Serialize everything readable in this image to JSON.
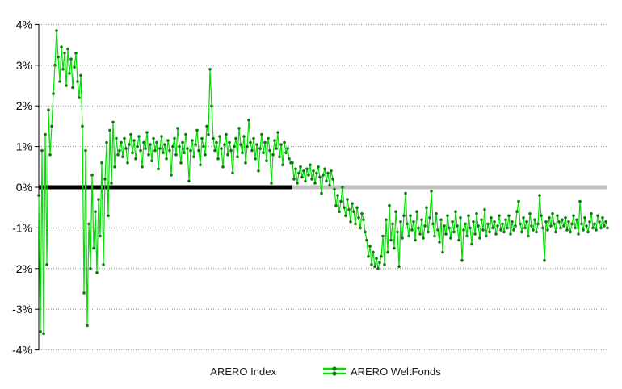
{
  "chart_data": {
    "type": "line",
    "title": "",
    "xlabel": "",
    "ylabel": "",
    "x_axis_labels_visible": false,
    "grid": "horizontal-dotted",
    "legend_position": "bottom-center",
    "y_axis": {
      "ticks": [
        "4%",
        "3%",
        "2%",
        "1%",
        "0%",
        "-1%",
        "-2%",
        "-3%",
        "-4%"
      ],
      "tick_values": [
        4,
        3,
        2,
        1,
        0,
        -1,
        -2,
        -3,
        -4
      ],
      "ylim": [
        -4,
        4
      ]
    },
    "colors": {
      "index_black": "#000000",
      "index_silver": "#c0c0c0",
      "fonds_line": "#00df00",
      "fonds_marker": "#0e7a0e",
      "gridline": "#909090",
      "axis": "#000000",
      "label_text": "#000000"
    },
    "series": [
      {
        "name": "ARERO Index",
        "type": "flat-line",
        "value_percent": 0,
        "black_until_fraction": 0.446
      },
      {
        "name": "ARERO WeltFonds",
        "type": "line-with-markers",
        "unit": "%",
        "values": [
          -0.2,
          -3.55,
          0.9,
          -3.6,
          1.3,
          -1.9,
          1.9,
          0.8,
          1.5,
          2.3,
          3.0,
          3.85,
          3.2,
          2.6,
          3.45,
          2.9,
          3.3,
          2.5,
          3.4,
          2.8,
          3.15,
          2.45,
          2.95,
          3.3,
          2.6,
          2.2,
          2.75,
          1.5,
          -2.6,
          0.9,
          -3.4,
          -0.9,
          -2.0,
          0.3,
          -1.5,
          -0.6,
          -2.1,
          -0.3,
          -1.2,
          0.6,
          -1.9,
          0.2,
          1.1,
          -0.7,
          1.4,
          0.1,
          1.6,
          0.5,
          1.2,
          0.8,
          0.9,
          1.1,
          0.75,
          1.2,
          0.95,
          0.6,
          1.05,
          1.3,
          0.85,
          1.15,
          0.7,
          1.0,
          1.25,
          0.9,
          0.5,
          1.1,
          0.95,
          1.35,
          0.8,
          1.05,
          0.65,
          1.2,
          0.9,
          1.1,
          0.45,
          0.95,
          1.25,
          0.85,
          1.05,
          0.7,
          1.15,
          0.9,
          0.3,
          1.0,
          1.2,
          0.8,
          1.45,
          1.0,
          0.6,
          1.1,
          0.85,
          1.3,
          0.95,
          0.15,
          0.9,
          1.15,
          0.75,
          1.05,
          1.4,
          0.9,
          0.55,
          1.2,
          1.0,
          0.8,
          1.5,
          1.3,
          2.9,
          2.0,
          1.2,
          0.9,
          1.1,
          0.7,
          1.25,
          0.95,
          0.5,
          1.05,
          1.3,
          0.8,
          1.1,
          0.9,
          0.35,
          1.0,
          1.2,
          0.75,
          1.45,
          1.05,
          0.85,
          1.25,
          0.6,
          1.0,
          1.65,
          1.1,
          0.9,
          1.2,
          0.7,
          1.05,
          0.4,
          0.95,
          1.3,
          0.85,
          1.1,
          0.65,
          1.2,
          0.9,
          0.1,
          0.8,
          1.15,
          0.95,
          1.35,
          0.75,
          1.05,
          0.55,
          1.1,
          0.85,
          0.95,
          0.7,
          0.6,
          0.6,
          0.2,
          0.45,
          0.1,
          0.35,
          0.5,
          0.25,
          0.4,
          0.15,
          0.45,
          0.3,
          0.55,
          0.2,
          0.4,
          0.1,
          0.35,
          0.5,
          0.25,
          -0.15,
          0.3,
          0.45,
          0.15,
          0.35,
          0.05,
          0.4,
          0.2,
          -0.05,
          -0.45,
          -0.2,
          -0.6,
          -0.35,
          0.0,
          -0.5,
          -0.7,
          -0.3,
          -0.55,
          -0.85,
          -0.4,
          -0.6,
          -0.9,
          -0.5,
          -0.75,
          -1.0,
          -0.65,
          -0.8,
          -1.1,
          -1.3,
          -1.7,
          -1.45,
          -1.9,
          -1.6,
          -1.95,
          -1.75,
          -2.0,
          -1.85,
          -1.7,
          -1.2,
          -1.9,
          -0.8,
          -1.6,
          -0.45,
          -1.3,
          -0.9,
          -1.5,
          -0.6,
          -1.1,
          -1.95,
          -0.85,
          -1.25,
          -0.7,
          -0.15,
          -0.9,
          -1.2,
          -0.7,
          -1.05,
          -0.85,
          -1.3,
          -0.6,
          -1.0,
          -1.15,
          -0.8,
          -1.25,
          -0.95,
          -0.5,
          -1.1,
          -0.75,
          -0.1,
          -0.9,
          -1.2,
          -0.65,
          -1.05,
          -1.35,
          -0.8,
          -1.6,
          -0.95,
          -1.15,
          -0.7,
          -1.0,
          -1.25,
          -0.85,
          -1.1,
          -0.6,
          -0.95,
          -1.3,
          -0.75,
          -1.8,
          -1.05,
          -0.9,
          -1.2,
          -0.7,
          -1.0,
          -1.4,
          -0.85,
          -1.15,
          -0.65,
          -0.95,
          -1.25,
          -0.8,
          -1.05,
          -0.55,
          -1.2,
          -0.9,
          -1.1,
          -0.75,
          -1.0,
          -0.85,
          -1.15,
          -0.95,
          -0.7,
          -1.05,
          -0.9,
          -1.1,
          -0.8,
          -1.0,
          -0.7,
          -1.15,
          -0.85,
          -1.05,
          -0.95,
          -0.6,
          -0.35,
          -0.9,
          -1.1,
          -0.75,
          -1.0,
          -0.85,
          -1.2,
          -0.65,
          -0.95,
          -1.05,
          -0.8,
          -1.1,
          -0.9,
          -0.2,
          -0.7,
          -1.0,
          -1.8,
          -0.85,
          -1.05,
          -0.75,
          -0.95,
          -0.65,
          -0.9,
          -1.1,
          -0.7,
          -0.85,
          -1.0,
          -0.8,
          -0.95,
          -0.75,
          -1.05,
          -0.85,
          -1.1,
          -0.9,
          -0.7,
          -1.0,
          -0.8,
          -1.15,
          -0.35,
          -0.9,
          -1.05,
          -0.75,
          -0.95,
          -1.1,
          -0.85,
          -0.65,
          -1.0,
          -0.9,
          -1.05,
          -0.7,
          -0.85,
          -1.0,
          -0.75,
          -0.95,
          -0.85,
          -1.0
        ]
      }
    ],
    "legend": {
      "items": [
        {
          "label": "ARERO Index"
        },
        {
          "label": "ARERO WeltFonds"
        }
      ]
    }
  }
}
